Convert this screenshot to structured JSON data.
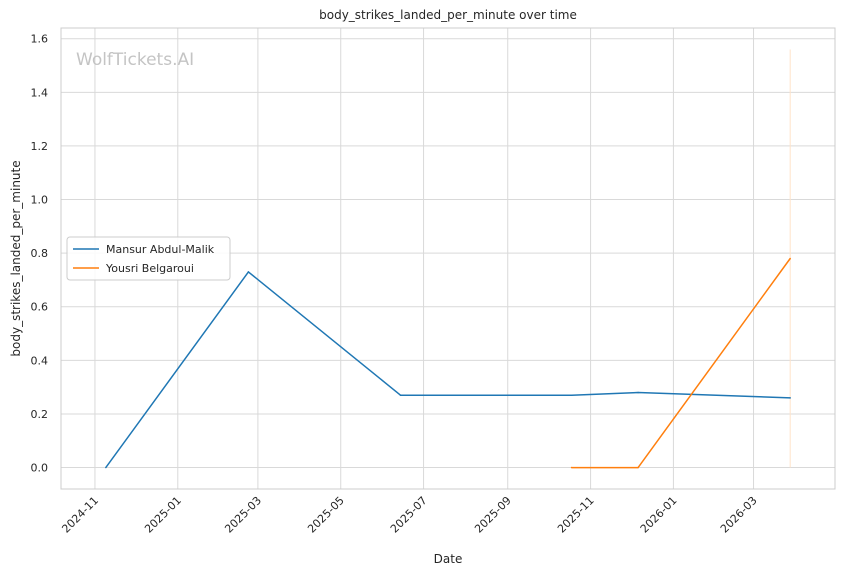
{
  "chart_data": {
    "type": "line",
    "title": "body_strikes_landed_per_minute over time",
    "xlabel": "Date",
    "ylabel": "body_strikes_landed_per_minute",
    "watermark": "WolfTickets.AI",
    "x_axis_type": "date",
    "xlim": [
      "2024-10-07",
      "2026-04-30"
    ],
    "ylim": [
      -0.08,
      1.64
    ],
    "x_ticks": [
      "2024-11-01",
      "2025-01-01",
      "2025-03-01",
      "2025-05-01",
      "2025-07-01",
      "2025-09-01",
      "2025-11-01",
      "2026-01-01",
      "2026-03-01"
    ],
    "x_tick_labels": [
      "2024-11",
      "2025-01",
      "2025-03",
      "2025-05",
      "2025-07",
      "2025-09",
      "2025-11",
      "2026-01",
      "2026-03"
    ],
    "y_ticks": [
      0.0,
      0.2,
      0.4,
      0.6,
      0.8,
      1.0,
      1.2,
      1.4,
      1.6
    ],
    "y_tick_labels": [
      "0.0",
      "0.2",
      "0.4",
      "0.6",
      "0.8",
      "1.0",
      "1.2",
      "1.4",
      "1.6"
    ],
    "grid": true,
    "legend_position": "center-left",
    "series": [
      {
        "name": "Mansur Abdul-Malik",
        "color": "#1f77b4",
        "points": [
          {
            "x": "2024-11-09",
            "y": 0.0
          },
          {
            "x": "2025-02-22",
            "y": 0.73
          },
          {
            "x": "2025-06-14",
            "y": 0.27
          },
          {
            "x": "2025-10-18",
            "y": 0.27
          },
          {
            "x": "2025-12-06",
            "y": 0.28
          },
          {
            "x": "2026-03-28",
            "y": 0.26
          }
        ]
      },
      {
        "name": "Yousri Belgaroui",
        "color": "#ff7f0e",
        "points": [
          {
            "x": "2025-10-18",
            "y": 0.0
          },
          {
            "x": "2025-12-06",
            "y": 0.0
          },
          {
            "x": "2026-03-28",
            "y": 0.78
          }
        ]
      }
    ],
    "reference_line": {
      "x": "2026-03-28",
      "y_range": [
        0.0,
        1.56
      ],
      "color": "#ffe3c9"
    }
  }
}
